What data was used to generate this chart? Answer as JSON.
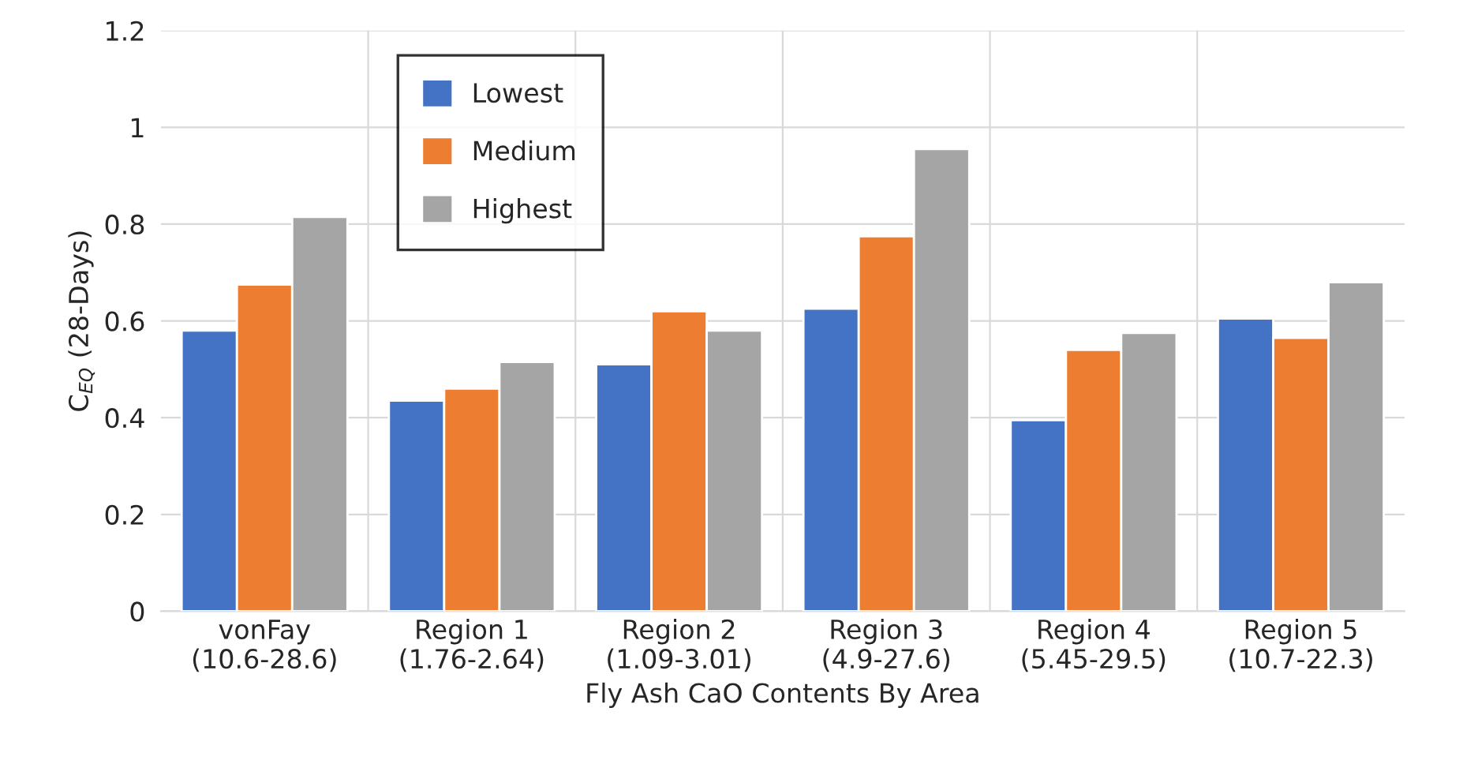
{
  "chart_data": {
    "type": "bar",
    "xlabel": "Fly Ash CaO Contents By Area",
    "ylabel": "C$_{EQ}$ (28-Days)",
    "categories": [
      "vonFay\n(10.6-28.6)",
      "Region 1\n(1.76-2.64)",
      "Region 2\n(1.09-3.01)",
      "Region 3\n(4.9-27.6)",
      "Region 4\n(5.45-29.5)",
      "Region 5\n(10.7-22.3)"
    ],
    "series": [
      {
        "name": "Lowest",
        "color": "#4472c4",
        "values": [
          0.58,
          0.435,
          0.51,
          0.625,
          0.395,
          0.605
        ]
      },
      {
        "name": "Medium",
        "color": "#ed7d31",
        "values": [
          0.675,
          0.46,
          0.62,
          0.775,
          0.54,
          0.565
        ]
      },
      {
        "name": "Highest",
        "color": "#a5a5a5",
        "values": [
          0.815,
          0.515,
          0.58,
          0.955,
          0.575,
          0.68
        ]
      }
    ],
    "ylim": [
      0,
      1.2
    ],
    "yticks": [
      0,
      0.2,
      0.4,
      0.6,
      0.8,
      {
        "value": 1.0,
        "label": "1"
      },
      1.2
    ],
    "grid": true,
    "legend": "top left"
  }
}
